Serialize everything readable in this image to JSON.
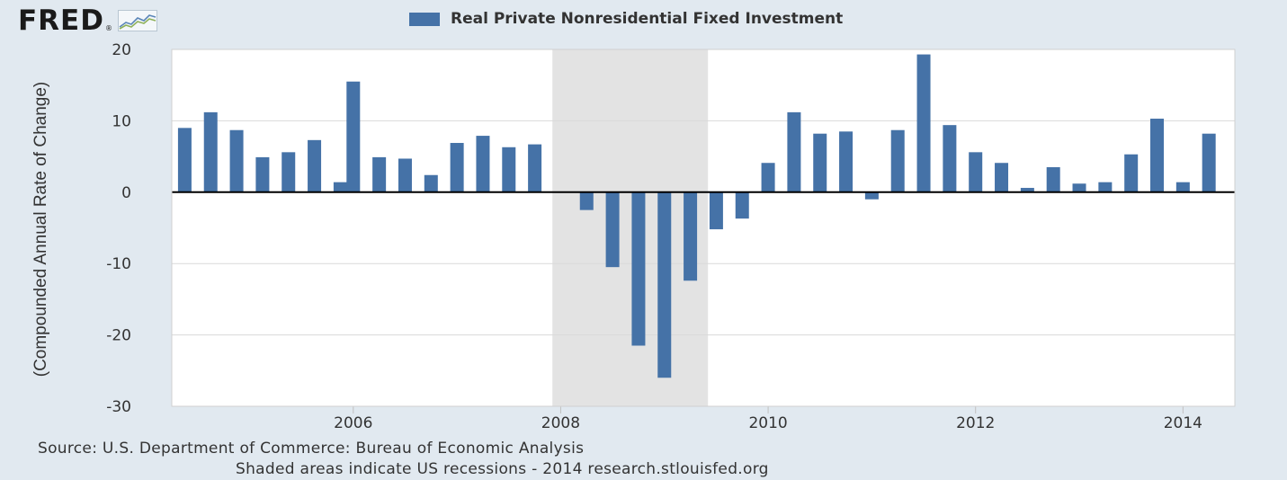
{
  "brand": {
    "logo_text": "FRED",
    "logo_mark": "®"
  },
  "colors": {
    "bar": "#4572a7",
    "recession_band": "#e3e3e3",
    "zero_line": "#000000",
    "grid": "#d9d9d9",
    "plot_background": "#ffffff",
    "page_background": "#e1e9f0"
  },
  "chart_data": {
    "type": "bar",
    "title": "",
    "legend": {
      "placement": "top-center",
      "entries": [
        "Real Private Nonresidential Fixed Investment"
      ]
    },
    "ylabel": "(Compounded Annual Rate of Change)",
    "xlabel": "",
    "ylim": [
      -30,
      20
    ],
    "xlim": [
      2004.25,
      2014.5
    ],
    "yticks": [
      "20",
      "10",
      "0",
      "-10",
      "-20",
      "-30"
    ],
    "ytick_values": [
      20,
      10,
      0,
      -10,
      -20,
      -30
    ],
    "xticks": [
      "2006",
      "2008",
      "2010",
      "2012",
      "2014"
    ],
    "xtick_values": [
      2006,
      2008,
      2010,
      2012,
      2014
    ],
    "grid": true,
    "recession_shading": {
      "start": 2007.92,
      "end": 2009.42
    },
    "series": [
      {
        "name": "Real Private Nonresidential Fixed Investment",
        "x": [
          2004.375,
          2004.625,
          2004.875,
          2005.125,
          2005.375,
          2005.625,
          2005.875,
          2006.0,
          2006.25,
          2006.5,
          2006.75,
          2007.0,
          2007.25,
          2007.5,
          2007.75,
          2008.25,
          2008.5,
          2008.75,
          2009.0,
          2009.25,
          2009.5,
          2009.75,
          2010.0,
          2010.25,
          2010.5,
          2010.75,
          2011.0,
          2011.25,
          2011.5,
          2011.75,
          2012.0,
          2012.25,
          2012.5,
          2012.75,
          2013.0,
          2013.25,
          2013.5,
          2013.75,
          2014.0,
          2014.25
        ],
        "values": [
          9.0,
          11.2,
          8.7,
          4.9,
          5.6,
          7.3,
          1.4,
          15.5,
          4.9,
          4.7,
          2.4,
          6.9,
          7.9,
          6.3,
          6.7,
          -2.5,
          -10.5,
          -21.5,
          -26.0,
          -12.4,
          -5.2,
          -3.7,
          4.1,
          11.2,
          8.2,
          8.5,
          -1.0,
          8.7,
          19.3,
          9.4,
          5.6,
          4.1,
          0.6,
          3.5,
          1.2,
          1.4,
          5.3,
          10.3,
          1.4,
          8.2
        ]
      }
    ]
  },
  "footer": {
    "source": "Source: U.S. Department of Commerce: Bureau of Economic Analysis",
    "note": "Shaded areas indicate US recessions - 2014 research.stlouisfed.org"
  }
}
